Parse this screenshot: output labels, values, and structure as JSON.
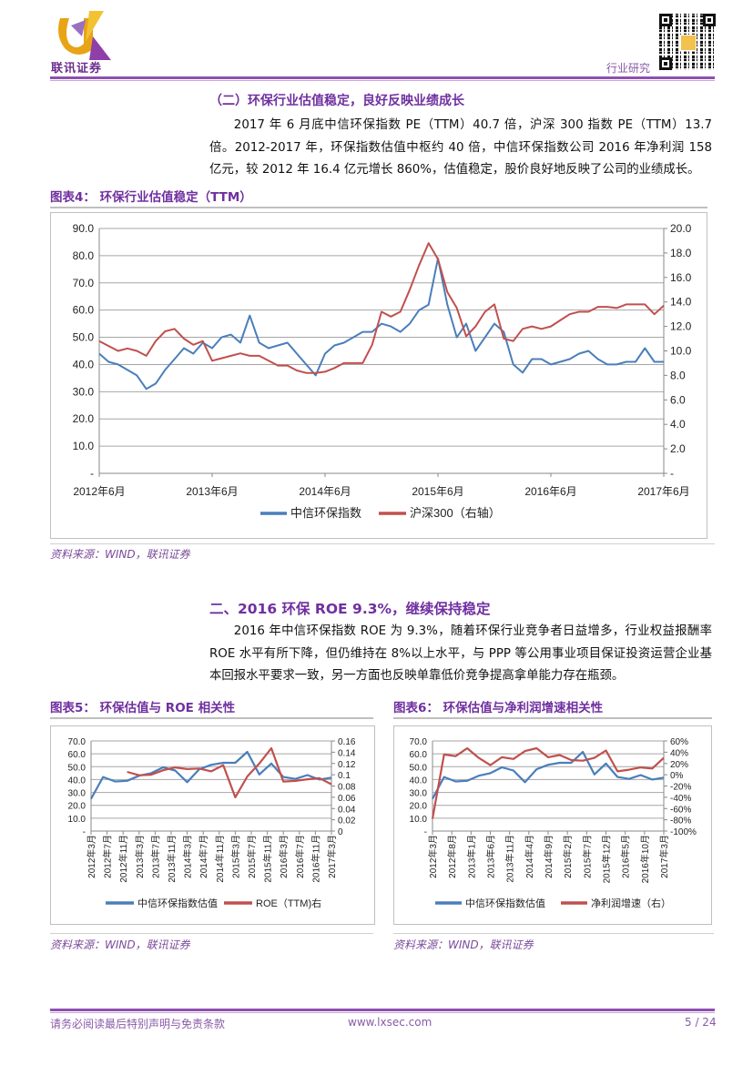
{
  "header": {
    "logo_text": "联讯证券",
    "category": "行业研究"
  },
  "section1": {
    "title": "（二）环保行业估值稳定，良好反映业绩成长",
    "paragraph": "2017 年 6 月底中信环保指数 PE（TTM）40.7 倍，沪深 300 指数 PE（TTM）13.7 倍。2012-2017 年，环保指数估值中枢约 40 倍，中信环保指数公司 2016 年净利润 158 亿元，较 2012 年 16.4 亿元增长 860%，估值稳定，股价良好地反映了公司的业绩成长。"
  },
  "figure4": {
    "label": "图表4：",
    "title": "环保行业估值稳定（TTM）",
    "source": "资料来源：WIND，联讯证券"
  },
  "section2": {
    "title": "二、2016 环保 ROE 9.3%，继续保持稳定",
    "paragraph": "2016 年中信环保指数 ROE 为 9.3%，随着环保行业竞争者日益增多，行业权益报酬率 ROE 水平有所下降，但仍维持在 8%以上水平，与 PPP 等公用事业项目保证投资运营企业基本回报水平要求一致，另一方面也反映单靠低价竞争提高拿单能力存在瓶颈。"
  },
  "figure5": {
    "label": "图表5：",
    "title": "环保估值与 ROE 相关性",
    "source": "资料来源：WIND，联讯证券"
  },
  "figure6": {
    "label": "图表6：",
    "title": "环保估值与净利润增速相关性",
    "source": "资料来源：WIND，联讯证券"
  },
  "footer": {
    "disclaimer": "请务必阅读最后特别声明与免责条款",
    "website": "www.lxsec.com",
    "page": "5 / 24"
  },
  "colors": {
    "blue": "#4a7ebb",
    "red": "#c0504d",
    "accent": "#7030a0"
  },
  "chart_data": [
    {
      "id": "figure4",
      "type": "line",
      "title": "环保行业估值稳定（TTM）",
      "x_start": "2012-06",
      "x_step_months": 1,
      "xticks": [
        "2012年6月",
        "2013年6月",
        "2014年6月",
        "2015年6月",
        "2016年6月",
        "2017年6月"
      ],
      "xtick_index": [
        0,
        12,
        24,
        36,
        48,
        60
      ],
      "y_left": {
        "lim": [
          0,
          90
        ],
        "ticks": [
          "-",
          "10.0",
          "20.0",
          "30.0",
          "40.0",
          "50.0",
          "60.0",
          "70.0",
          "80.0",
          "90.0"
        ]
      },
      "y_right": {
        "lim": [
          0,
          20
        ],
        "ticks": [
          "-",
          "2.0",
          "4.0",
          "6.0",
          "8.0",
          "10.0",
          "12.0",
          "14.0",
          "16.0",
          "18.0",
          "20.0"
        ]
      },
      "grid": true,
      "legend": "bottom",
      "series": [
        {
          "name": "中信环保指数",
          "axis": "left",
          "color": "#4a7ebb",
          "values": [
            44,
            41,
            40,
            38,
            36,
            31,
            33,
            38,
            42,
            46,
            44,
            48,
            46,
            50,
            51,
            48,
            58,
            48,
            46,
            47,
            48,
            44,
            40,
            36,
            44,
            47,
            48,
            50,
            52,
            52,
            55,
            54,
            52,
            55,
            60,
            62,
            79,
            62,
            50,
            55,
            45,
            50,
            55,
            52,
            40,
            37,
            42,
            42,
            40,
            41,
            42,
            44,
            45,
            42,
            40,
            40,
            41,
            41,
            46,
            41,
            41
          ]
        },
        {
          "name": "沪深300（右轴）",
          "axis": "right",
          "color": "#c0504d",
          "values": [
            10.8,
            10.4,
            10.0,
            10.2,
            10.0,
            9.6,
            10.8,
            11.6,
            11.8,
            11.0,
            10.5,
            10.8,
            9.2,
            9.4,
            9.6,
            9.8,
            9.6,
            9.6,
            9.2,
            8.8,
            8.8,
            8.4,
            8.2,
            8.2,
            8.3,
            8.6,
            9.0,
            9.0,
            9.0,
            10.5,
            13.2,
            12.8,
            13.2,
            15.0,
            17.0,
            18.8,
            17.5,
            14.8,
            13.5,
            11.2,
            12.0,
            13.2,
            13.8,
            11.0,
            10.8,
            11.8,
            12.0,
            11.8,
            12.0,
            12.5,
            13.0,
            13.2,
            13.2,
            13.6,
            13.6,
            13.5,
            13.8,
            13.8,
            13.8,
            13.0,
            13.7
          ]
        }
      ]
    },
    {
      "id": "figure5",
      "type": "line",
      "title": "环保估值与 ROE 相关性",
      "x_start": "2012-03",
      "x_step_months": 3,
      "xticks": [
        "2012年3月",
        "2012年7月",
        "2012年11月",
        "2013年3月",
        "2013年7月",
        "2013年11月",
        "2014年3月",
        "2014年7月",
        "2014年11月",
        "2015年3月",
        "2015年7月",
        "2015年11月",
        "2016年3月",
        "2016年7月",
        "2016年11月",
        "2017年3月"
      ],
      "y_left": {
        "lim": [
          0,
          70
        ],
        "ticks": [
          "-",
          "10.0",
          "20.0",
          "30.0",
          "40.0",
          "50.0",
          "60.0",
          "70.0"
        ]
      },
      "y_right": {
        "lim": [
          0,
          0.16
        ],
        "ticks": [
          "0",
          "0.02",
          "0.04",
          "0.06",
          "0.08",
          "0.1",
          "0.12",
          "0.14",
          "0.16"
        ]
      },
      "grid": true,
      "legend": "bottom",
      "series": [
        {
          "name": "中信环保指数估值",
          "axis": "left",
          "color": "#4a7ebb",
          "values": [
            25,
            42,
            38.5,
            39,
            43,
            45,
            49.5,
            47,
            38,
            48,
            51.5,
            53,
            53,
            61.5,
            44,
            52.5,
            42,
            40.5,
            43.5,
            40,
            41.5
          ]
        },
        {
          "name": "ROE（TTM)右",
          "axis": "right",
          "color": "#c0504d",
          "values": [
            null,
            null,
            null,
            0.105,
            0.099,
            0.1,
            0.108,
            0.113,
            0.11,
            0.111,
            0.106,
            0.117,
            0.06,
            0.097,
            0.12,
            0.147,
            0.088,
            0.089,
            0.092,
            0.094,
            0.083
          ]
        }
      ]
    },
    {
      "id": "figure6",
      "type": "line",
      "title": "环保估值与净利润增速相关性",
      "x_start": "2012-03",
      "x_step_months": 3,
      "xticks": [
        "2012年3月",
        "2012年8月",
        "2013年1月",
        "2013年6月",
        "2013年11月",
        "2014年4月",
        "2014年9月",
        "2015年2月",
        "2015年7月",
        "2015年12月",
        "2016年5月",
        "2016年10月",
        "2017年3月"
      ],
      "y_left": {
        "lim": [
          0,
          70
        ],
        "ticks": [
          "-",
          "10.0",
          "20.0",
          "30.0",
          "40.0",
          "50.0",
          "60.0",
          "70.0"
        ]
      },
      "y_right": {
        "lim": [
          -100,
          60
        ],
        "ticks": [
          "-100%",
          "-80%",
          "-60%",
          "-40%",
          "-20%",
          "0%",
          "20%",
          "40%",
          "60%"
        ]
      },
      "grid": true,
      "legend": "bottom",
      "series": [
        {
          "name": "中信环保指数估值",
          "axis": "left",
          "color": "#4a7ebb",
          "values": [
            25,
            42,
            38.5,
            39,
            43,
            45,
            49.5,
            47,
            38,
            48,
            51.5,
            53,
            53,
            61.5,
            44,
            52.5,
            42,
            40.5,
            43.5,
            40,
            41.5
          ]
        },
        {
          "name": "净利润增速（右）",
          "axis": "right",
          "color": "#c0504d",
          "values": [
            -78,
            36,
            33,
            47,
            30,
            17,
            31,
            28,
            42,
            47,
            31,
            35,
            26,
            25,
            30,
            43,
            6,
            9,
            13,
            11,
            30
          ]
        }
      ]
    }
  ]
}
